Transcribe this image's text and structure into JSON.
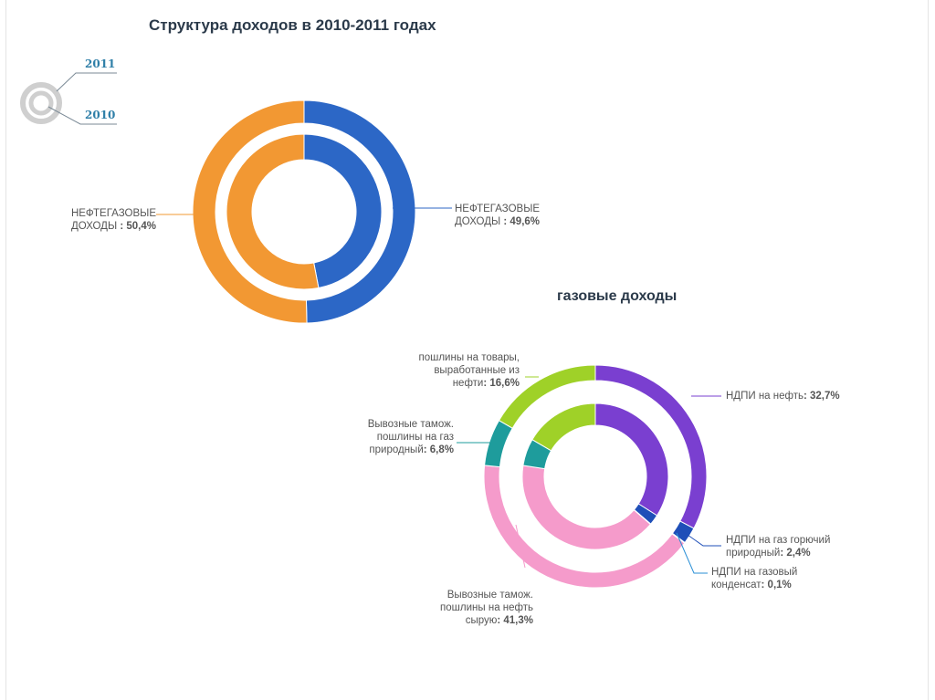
{
  "title": "Структура доходов в 2010-2011 годах",
  "legend": {
    "outer_year": "2011",
    "inner_year": "2010"
  },
  "colors": {
    "oil_gas": "#f29833",
    "non_oil_gas": "#2c67c6",
    "ndpi_oil": "#7a3fd0",
    "ndpi_gas": "#1f4fb8",
    "ndpi_condensate": "#2a8fd6",
    "export_oil": "#f59bcb",
    "export_gas": "#1e9c9c",
    "export_goods": "#9fd128"
  },
  "chart_data": [
    {
      "type": "pie",
      "title": "Структура доходов в 2010-2011 годах",
      "series": [
        {
          "name": "2011",
          "labels": [
            "НЕФТЕГАЗОВЫЕ ДОХОДЫ",
            "НЕФТЕГАЗОВЫЕ ДОХОДЫ"
          ],
          "values": [
            50.4,
            49.6
          ]
        },
        {
          "name": "2010",
          "labels": [
            "НЕФТЕГАЗОВЫЕ ДОХОДЫ",
            "НЕФТЕГАЗОВЫЕ ДОХОДЫ"
          ],
          "values": [
            53.0,
            47.0
          ]
        }
      ],
      "annotations": [
        {
          "line1": "НЕФТЕГАЗОВЫЕ",
          "line2": "ДОХОДЫ",
          "value": ": 50,4%"
        },
        {
          "line1": "НЕФТЕГАЗОВЫЕ",
          "line2": "ДОХОДЫ",
          "value": ": 49,6%"
        }
      ]
    },
    {
      "type": "pie",
      "title": "газовые доходы",
      "series": [
        {
          "name": "2011",
          "labels": [
            "НДПИ на нефть",
            "НДПИ на газ горючий природный",
            "НДПИ на газовый конденсат",
            "Вывозные тамож. пошлины на нефть сырую",
            "Вывозные тамож. пошлины на газ природный",
            "пошлины на товары, выработанные из нефти"
          ],
          "values": [
            32.7,
            2.4,
            0.1,
            41.3,
            6.8,
            16.6
          ]
        },
        {
          "name": "2010",
          "labels": [
            "НДПИ на нефть",
            "НДПИ на газ горючий природный",
            "НДПИ на газовый конденсат",
            "Вывозные тамож. пошлины на нефть сырую",
            "Вывозные тамож. пошлины на газ природный",
            "пошлины на товары, выработанные из нефти"
          ],
          "values": [
            34.0,
            2.3,
            0.1,
            41.0,
            6.0,
            16.6
          ]
        }
      ],
      "annotations": [
        {
          "line1": "НДПИ на нефть",
          "value": ": 32,7%"
        },
        {
          "line1": "НДПИ на газ горючий",
          "line2": "природный",
          "value": ": 2,4%"
        },
        {
          "line1": "НДПИ на газовый",
          "line2": "конденсат",
          "value": ": 0,1%"
        },
        {
          "line1": "Вывозные тамож.",
          "line2": "пошлины на нефть",
          "line3": "сырую",
          "value": ": 41,3%"
        },
        {
          "line1": "Вывозные тамож.",
          "line2": "пошлины на газ",
          "line3": "природный",
          "value": ": 6,8%"
        },
        {
          "line1": "пошлины на товары,",
          "line2": "выработанные из",
          "line3": "нефти",
          "value": ": 16,6%"
        }
      ],
      "subtitle": "газовые доходы"
    }
  ]
}
